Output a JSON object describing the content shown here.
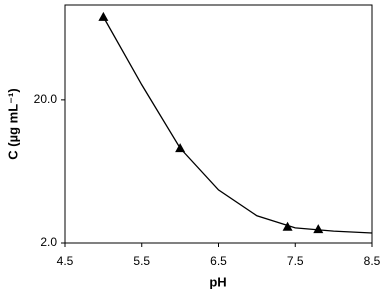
{
  "chart_data": {
    "type": "line",
    "log_y": true,
    "xlabel": "pH",
    "ylabel": "C (µg mL⁻¹)",
    "xlim": [
      4.5,
      8.5
    ],
    "xticks": [
      4.5,
      5.5,
      6.5,
      7.5,
      8.5
    ],
    "ylim": [
      2,
      92
    ],
    "yticks": [
      {
        "value": 2,
        "label": "2.0"
      },
      {
        "value": 20,
        "label": "20.0"
      }
    ],
    "grid": false,
    "series": [
      {
        "color": "#000000",
        "marker": "none",
        "x": [
          5.0,
          5.5,
          6.0,
          6.5,
          7.0,
          7.5,
          8.0,
          8.5
        ],
        "values": [
          76,
          25.5,
          9.2,
          4.7,
          3.1,
          2.55,
          2.42,
          2.35
        ]
      },
      {
        "color": "#000000",
        "marker": "triangle",
        "x": [
          5.0,
          6.0,
          7.4,
          7.8
        ],
        "values": [
          76,
          9.2,
          2.6,
          2.5
        ]
      }
    ]
  }
}
